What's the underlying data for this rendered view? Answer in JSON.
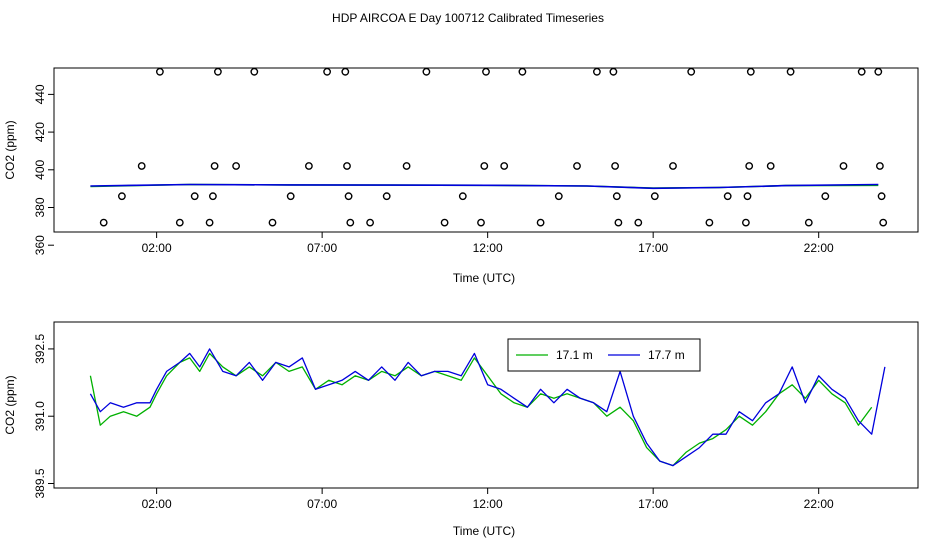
{
  "title": "HDP AIRCOA E  Day 100712  Calibrated Timeseries",
  "chart_data": [
    {
      "type": "scatter",
      "xlabel": "Time (UTC)",
      "ylabel": "CO2 (ppm)",
      "x_unit": "hours UTC",
      "xlim": [
        -1.1,
        25.0
      ],
      "ylim": [
        367,
        454
      ],
      "xticks": [
        2,
        7,
        12,
        17,
        22
      ],
      "xtick_labels": [
        "02:00",
        "07:00",
        "12:00",
        "17:00",
        "22:00"
      ],
      "yticks": [
        360,
        380,
        400,
        420,
        440
      ],
      "ytick_labels": [
        "360",
        "380",
        "400",
        "420",
        "440"
      ],
      "grid": false,
      "legend": false,
      "points": [
        {
          "x": 0.4,
          "y": 372
        },
        {
          "x": 0.95,
          "y": 386
        },
        {
          "x": 1.55,
          "y": 402
        },
        {
          "x": 2.1,
          "y": 452
        },
        {
          "x": 2.7,
          "y": 372
        },
        {
          "x": 3.15,
          "y": 386
        },
        {
          "x": 3.6,
          "y": 372
        },
        {
          "x": 3.7,
          "y": 386
        },
        {
          "x": 3.75,
          "y": 402
        },
        {
          "x": 3.85,
          "y": 452
        },
        {
          "x": 4.4,
          "y": 402
        },
        {
          "x": 4.95,
          "y": 452
        },
        {
          "x": 5.5,
          "y": 372
        },
        {
          "x": 6.05,
          "y": 386
        },
        {
          "x": 6.6,
          "y": 402
        },
        {
          "x": 7.15,
          "y": 452
        },
        {
          "x": 7.7,
          "y": 452
        },
        {
          "x": 7.75,
          "y": 402
        },
        {
          "x": 7.8,
          "y": 386
        },
        {
          "x": 7.85,
          "y": 372
        },
        {
          "x": 8.45,
          "y": 372
        },
        {
          "x": 8.95,
          "y": 386
        },
        {
          "x": 9.55,
          "y": 402
        },
        {
          "x": 10.15,
          "y": 452
        },
        {
          "x": 10.7,
          "y": 372
        },
        {
          "x": 11.25,
          "y": 386
        },
        {
          "x": 11.8,
          "y": 372
        },
        {
          "x": 11.9,
          "y": 402
        },
        {
          "x": 11.95,
          "y": 452
        },
        {
          "x": 12.5,
          "y": 402
        },
        {
          "x": 13.05,
          "y": 452
        },
        {
          "x": 13.6,
          "y": 372
        },
        {
          "x": 14.15,
          "y": 386
        },
        {
          "x": 14.7,
          "y": 402
        },
        {
          "x": 15.3,
          "y": 452
        },
        {
          "x": 15.8,
          "y": 452
        },
        {
          "x": 15.85,
          "y": 402
        },
        {
          "x": 15.9,
          "y": 386
        },
        {
          "x": 15.95,
          "y": 372
        },
        {
          "x": 16.55,
          "y": 372
        },
        {
          "x": 17.05,
          "y": 386
        },
        {
          "x": 17.6,
          "y": 402
        },
        {
          "x": 18.15,
          "y": 452
        },
        {
          "x": 18.7,
          "y": 372
        },
        {
          "x": 19.25,
          "y": 386
        },
        {
          "x": 19.8,
          "y": 372
        },
        {
          "x": 19.85,
          "y": 386
        },
        {
          "x": 19.9,
          "y": 402
        },
        {
          "x": 19.95,
          "y": 452
        },
        {
          "x": 20.55,
          "y": 402
        },
        {
          "x": 21.15,
          "y": 452
        },
        {
          "x": 21.7,
          "y": 372
        },
        {
          "x": 22.2,
          "y": 386
        },
        {
          "x": 22.75,
          "y": 402
        },
        {
          "x": 23.3,
          "y": 452
        },
        {
          "x": 23.8,
          "y": 452
        },
        {
          "x": 23.85,
          "y": 402
        },
        {
          "x": 23.9,
          "y": 386
        },
        {
          "x": 23.95,
          "y": 372
        }
      ],
      "series": [
        {
          "name": "17.1 m",
          "color": "#00b000",
          "x": [
            0.0,
            3.0,
            6.0,
            9.0,
            12.0,
            15.0,
            17.0,
            19.0,
            21.0,
            23.8
          ],
          "y": [
            391.2,
            392.2,
            392.0,
            391.9,
            391.8,
            391.4,
            390.3,
            390.6,
            391.6,
            391.8
          ]
        },
        {
          "name": "17.7 m",
          "color": "#0000dd",
          "x": [
            0.0,
            3.0,
            6.0,
            9.0,
            12.0,
            15.0,
            17.0,
            19.0,
            21.0,
            23.8
          ],
          "y": [
            391.4,
            392.2,
            392.0,
            391.9,
            391.8,
            391.4,
            390.2,
            390.6,
            391.6,
            392.2
          ]
        }
      ]
    },
    {
      "type": "line",
      "xlabel": "Time (UTC)",
      "ylabel": "CO2 (ppm)",
      "x_unit": "hours UTC",
      "xlim": [
        -1.1,
        25.0
      ],
      "ylim": [
        389.4,
        393.1
      ],
      "xticks": [
        2,
        7,
        12,
        17,
        22
      ],
      "xtick_labels": [
        "02:00",
        "07:00",
        "12:00",
        "17:00",
        "22:00"
      ],
      "yticks": [
        389.5,
        391.0,
        392.5
      ],
      "ytick_labels": [
        "389.5",
        "391.0",
        "392.5"
      ],
      "grid": false,
      "legend_position": "top-right",
      "series": [
        {
          "name": "17.1 m",
          "color": "#00b000",
          "x": [
            0.0,
            0.3,
            0.6,
            1.0,
            1.4,
            1.8,
            2.0,
            2.3,
            2.7,
            3.0,
            3.3,
            3.6,
            4.0,
            4.4,
            4.8,
            5.2,
            5.6,
            6.0,
            6.4,
            6.8,
            7.2,
            7.6,
            8.0,
            8.4,
            8.8,
            9.2,
            9.6,
            10.0,
            10.4,
            10.8,
            11.2,
            11.6,
            12.0,
            12.4,
            12.8,
            13.2,
            13.6,
            14.0,
            14.4,
            14.8,
            15.2,
            15.6,
            16.0,
            16.4,
            16.8,
            17.2,
            17.6,
            18.0,
            18.4,
            18.8,
            19.2,
            19.6,
            20.0,
            20.4,
            20.8,
            21.2,
            21.6,
            22.0,
            22.4,
            22.8,
            23.2,
            23.6
          ],
          "y": [
            391.9,
            390.8,
            391.0,
            391.1,
            391.0,
            391.2,
            391.5,
            391.9,
            392.2,
            392.3,
            392.0,
            392.4,
            392.1,
            391.9,
            392.1,
            391.9,
            392.2,
            392.0,
            392.1,
            391.6,
            391.8,
            391.7,
            391.9,
            391.8,
            392.0,
            391.9,
            392.1,
            391.9,
            392.0,
            391.9,
            391.8,
            392.3,
            391.9,
            391.5,
            391.3,
            391.2,
            391.5,
            391.4,
            391.5,
            391.4,
            391.3,
            391.0,
            391.2,
            390.9,
            390.3,
            390.0,
            389.9,
            390.2,
            390.4,
            390.5,
            390.7,
            391.0,
            390.8,
            391.1,
            391.5,
            391.7,
            391.4,
            391.8,
            391.5,
            391.3,
            390.8,
            391.2
          ]
        },
        {
          "name": "17.7 m",
          "color": "#0000dd",
          "x": [
            0.0,
            0.3,
            0.6,
            1.0,
            1.4,
            1.8,
            2.0,
            2.3,
            2.7,
            3.0,
            3.3,
            3.6,
            4.0,
            4.4,
            4.8,
            5.2,
            5.6,
            6.0,
            6.4,
            6.8,
            7.2,
            7.6,
            8.0,
            8.4,
            8.8,
            9.2,
            9.6,
            10.0,
            10.4,
            10.8,
            11.2,
            11.6,
            12.0,
            12.4,
            12.8,
            13.2,
            13.6,
            14.0,
            14.4,
            14.8,
            15.2,
            15.6,
            16.0,
            16.4,
            16.8,
            17.2,
            17.6,
            18.0,
            18.4,
            18.8,
            19.2,
            19.6,
            20.0,
            20.4,
            20.8,
            21.2,
            21.6,
            22.0,
            22.4,
            22.8,
            23.2,
            23.6,
            24.0
          ],
          "y": [
            391.5,
            391.1,
            391.3,
            391.2,
            391.3,
            391.3,
            391.6,
            392.0,
            392.2,
            392.4,
            392.1,
            392.5,
            392.0,
            391.9,
            392.2,
            391.8,
            392.2,
            392.1,
            392.3,
            391.6,
            391.7,
            391.8,
            392.0,
            391.8,
            392.1,
            391.8,
            392.2,
            391.9,
            392.0,
            392.0,
            391.9,
            392.4,
            391.7,
            391.6,
            391.4,
            391.2,
            391.6,
            391.3,
            391.6,
            391.4,
            391.3,
            391.1,
            392.0,
            391.0,
            390.4,
            390.0,
            389.9,
            390.1,
            390.3,
            390.6,
            390.6,
            391.1,
            390.9,
            391.3,
            391.5,
            392.1,
            391.3,
            391.9,
            391.6,
            391.4,
            390.9,
            390.6,
            392.1
          ]
        }
      ]
    }
  ]
}
